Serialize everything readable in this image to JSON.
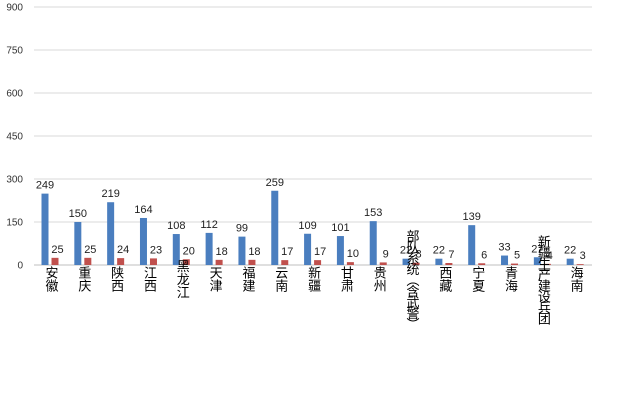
{
  "chart_data": {
    "type": "bar",
    "categories": [
      "安徽",
      "重庆",
      "陕西",
      "江西",
      "黑龙江",
      "天津",
      "福建",
      "云南",
      "新疆",
      "甘肃",
      "贵州",
      "部队系统（含武警）",
      "西藏",
      "宁夏",
      "青海",
      "新疆生产建设兵团",
      "海南"
    ],
    "series": [
      {
        "values": [
          249,
          150,
          219,
          164,
          108,
          112,
          99,
          259,
          109,
          101,
          153,
          22,
          22,
          139,
          33,
          27,
          22
        ]
      },
      {
        "values": [
          25,
          25,
          24,
          23,
          20,
          18,
          18,
          17,
          17,
          10,
          9,
          8,
          7,
          6,
          5,
          4,
          3
        ]
      }
    ],
    "title": "",
    "xlabel": "",
    "ylabel": "",
    "ylim": [
      0,
      900
    ],
    "yticks": [
      0,
      150,
      300,
      450,
      600,
      750,
      900
    ],
    "grid": true,
    "legend": "none",
    "colors": [
      "#4a7ebf",
      "#c0504d"
    ]
  }
}
